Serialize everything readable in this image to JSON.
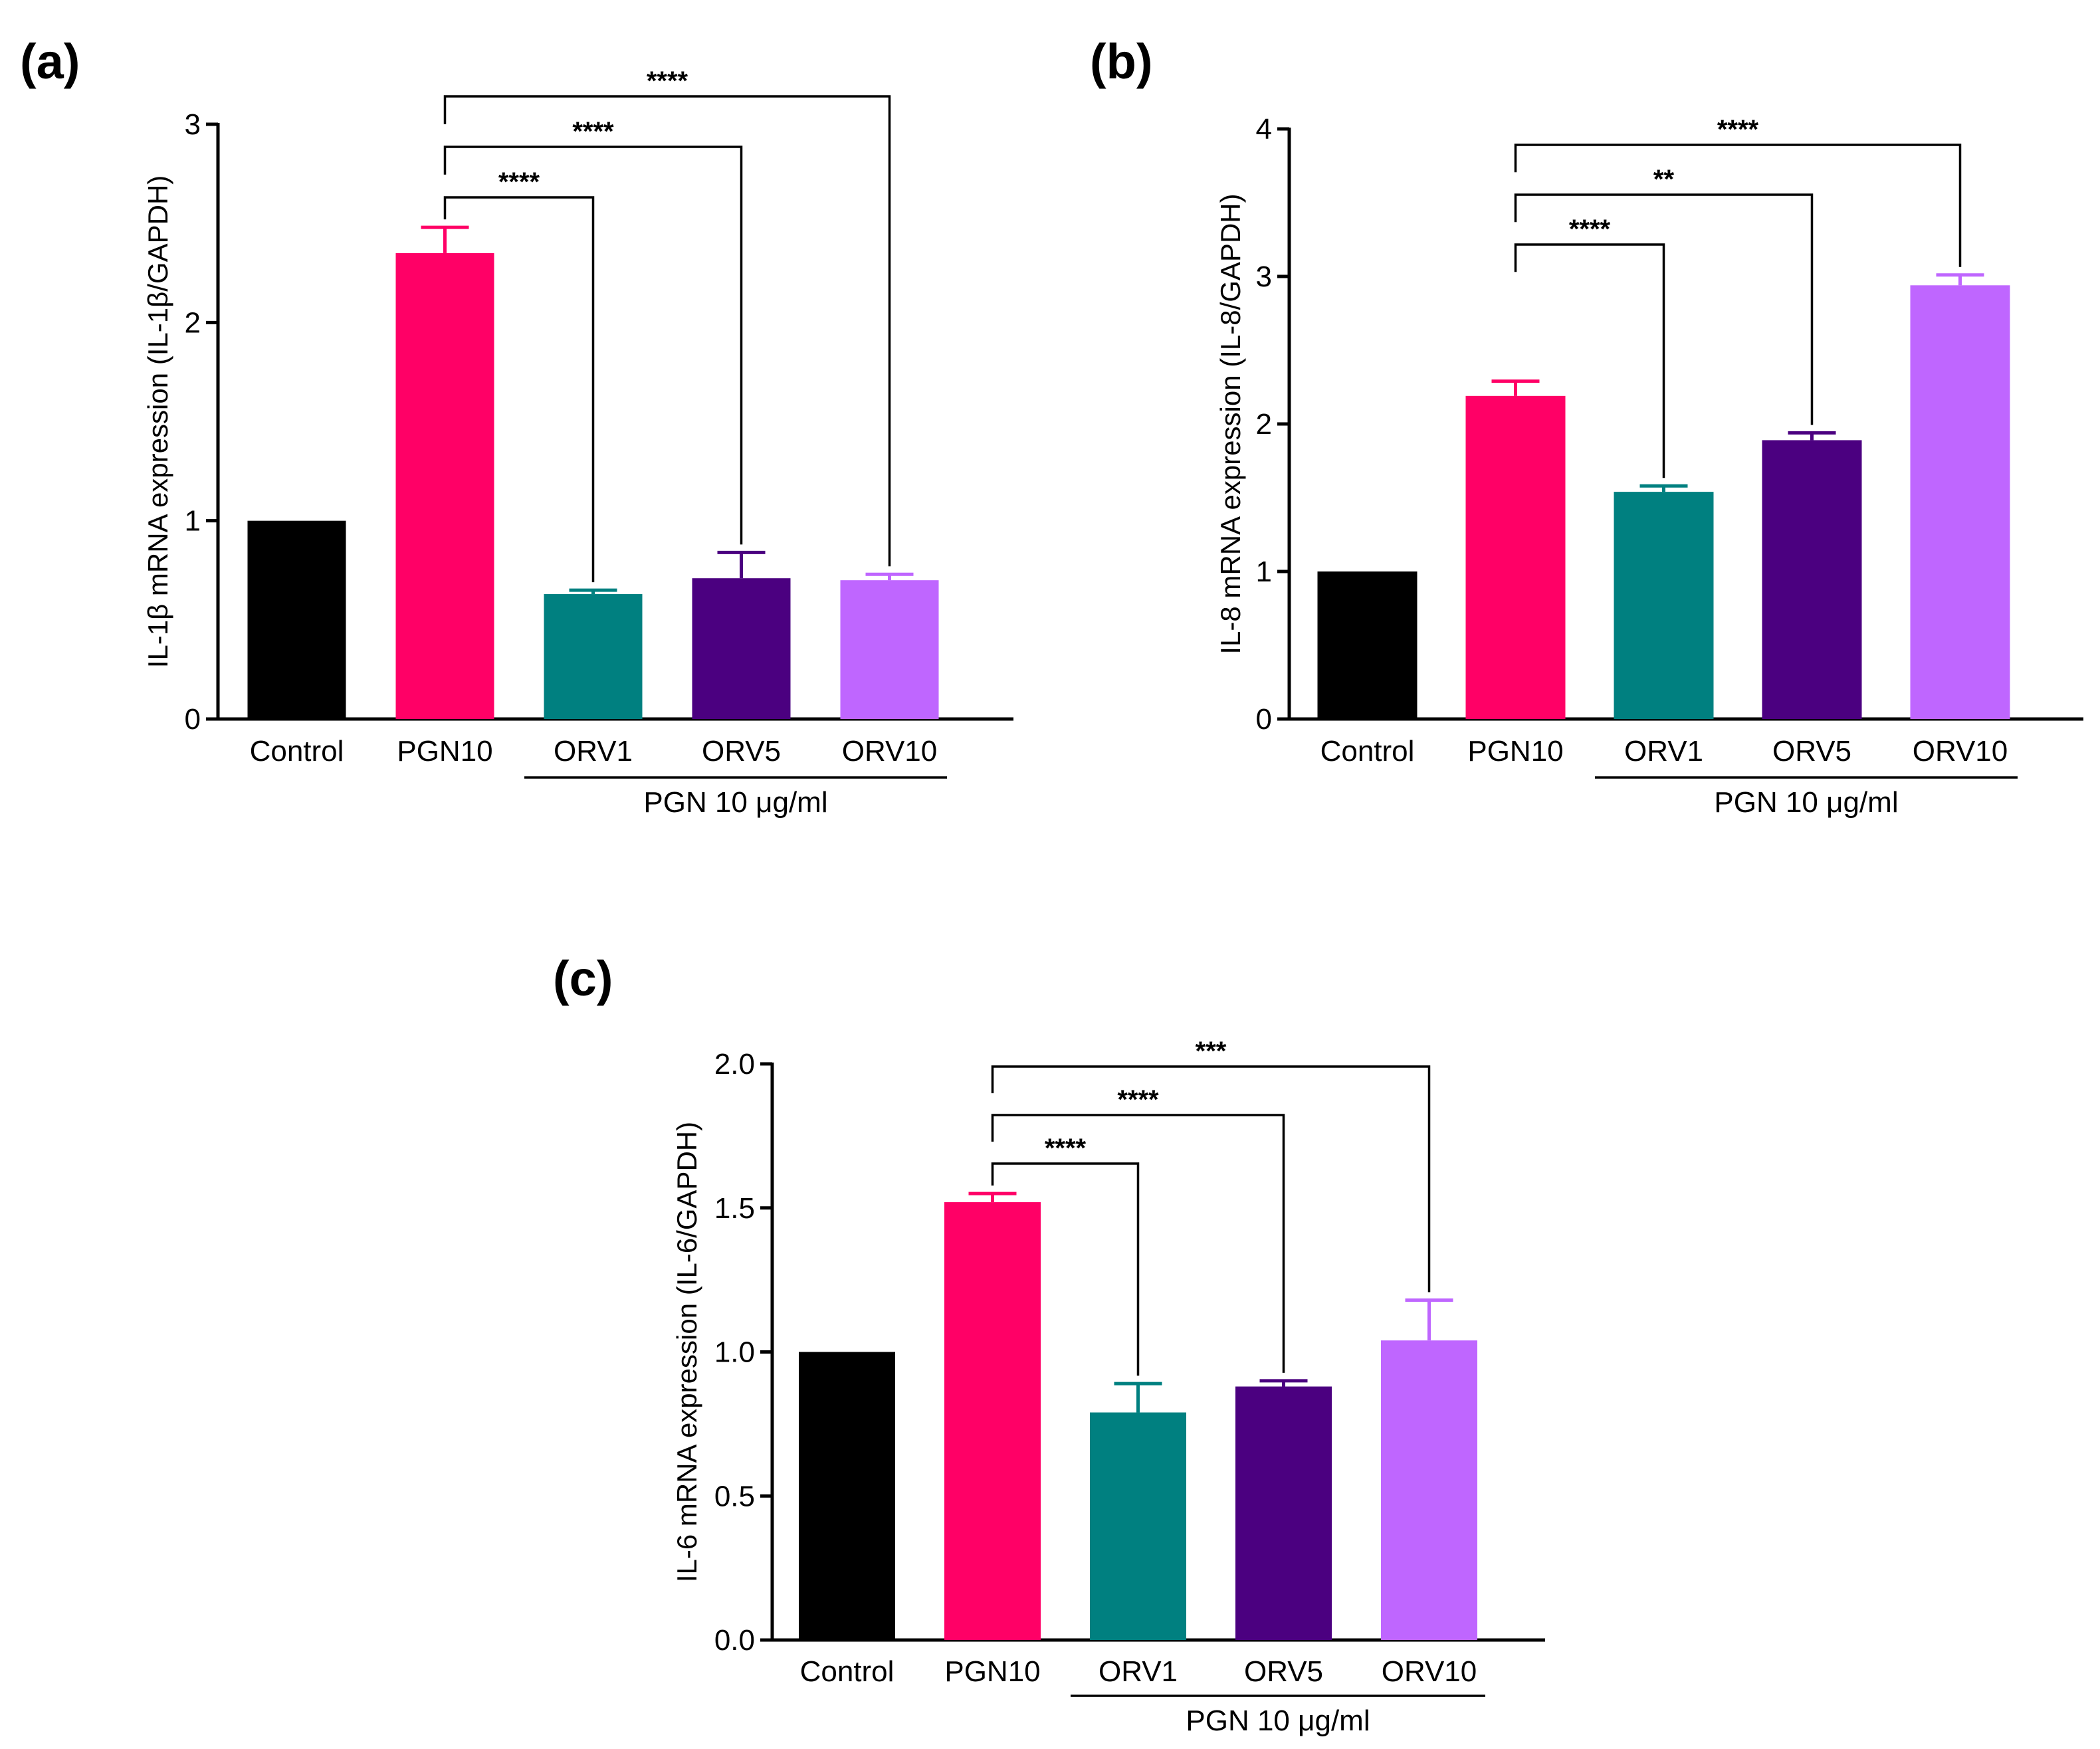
{
  "chart_data": [
    {
      "type": "bar",
      "panel_label": "(a)",
      "ylabel": "IL-1β mRNA expression (IL-1β/GAPDH)",
      "ylim": [
        0,
        3
      ],
      "yticks": [
        0,
        1,
        2,
        3
      ],
      "ytick_labels": [
        "0",
        "1",
        "2",
        "3"
      ],
      "categories": [
        "Control",
        "PGN10",
        "ORV1",
        "ORV5",
        "ORV10"
      ],
      "values": [
        1.0,
        2.35,
        0.63,
        0.71,
        0.7
      ],
      "errors": [
        0,
        0.13,
        0.02,
        0.13,
        0.03
      ],
      "colors": [
        "#000000",
        "#ff0066",
        "#008080",
        "#4b0080",
        "#bf66ff"
      ],
      "group_label": "PGN 10 μg/ml",
      "comparisons": [
        {
          "from": 1,
          "to": 2,
          "label": "****"
        },
        {
          "from": 1,
          "to": 3,
          "label": "****"
        },
        {
          "from": 1,
          "to": 4,
          "label": "****"
        }
      ]
    },
    {
      "type": "bar",
      "panel_label": "(b)",
      "ylabel": "IL-8 mRNA expression (IL-8/GAPDH)",
      "ylim": [
        0,
        4
      ],
      "yticks": [
        0,
        1,
        2,
        3,
        4
      ],
      "ytick_labels": [
        "0",
        "1",
        "2",
        "3",
        "4"
      ],
      "categories": [
        "Control",
        "PGN10",
        "ORV1",
        "ORV5",
        "ORV10"
      ],
      "values": [
        1.0,
        2.19,
        1.54,
        1.89,
        2.94
      ],
      "errors": [
        0,
        0.1,
        0.04,
        0.05,
        0.07
      ],
      "colors": [
        "#000000",
        "#ff0066",
        "#008080",
        "#4b0080",
        "#bf66ff"
      ],
      "group_label": "PGN 10 μg/ml",
      "comparisons": [
        {
          "from": 1,
          "to": 2,
          "label": "****"
        },
        {
          "from": 1,
          "to": 3,
          "label": "**"
        },
        {
          "from": 1,
          "to": 4,
          "label": "****"
        }
      ]
    },
    {
      "type": "bar",
      "panel_label": "(c)",
      "ylabel": "IL-6 mRNA expression (IL-6/GAPDH)",
      "ylim": [
        0,
        2
      ],
      "yticks": [
        0,
        0.5,
        1,
        1.5,
        2
      ],
      "ytick_labels": [
        "0.0",
        "0.5",
        "1.0",
        "1.5",
        "2.0"
      ],
      "categories": [
        "Control",
        "PGN10",
        "ORV1",
        "ORV5",
        "ORV10"
      ],
      "values": [
        1.0,
        1.52,
        0.79,
        0.88,
        1.04
      ],
      "errors": [
        0,
        0.03,
        0.1,
        0.02,
        0.14
      ],
      "colors": [
        "#000000",
        "#ff0066",
        "#008080",
        "#4b0080",
        "#bf66ff"
      ],
      "group_label": "PGN 10 μg/ml",
      "comparisons": [
        {
          "from": 1,
          "to": 2,
          "label": "****"
        },
        {
          "from": 1,
          "to": 3,
          "label": "****"
        },
        {
          "from": 1,
          "to": 4,
          "label": "***"
        }
      ]
    }
  ]
}
